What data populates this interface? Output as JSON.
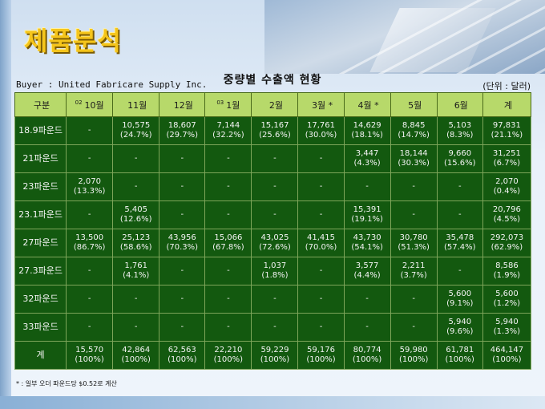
{
  "page_title": "제품분석",
  "table_title": "중량별 수출액 현황",
  "buyer": "Buyer : United Fabricare Supply Inc.",
  "unit": "(단위 : 달러)",
  "headers": [
    {
      "sup": "",
      "label": "구분"
    },
    {
      "sup": "02",
      "label": "10월"
    },
    {
      "sup": "",
      "label": "11월"
    },
    {
      "sup": "",
      "label": "12월"
    },
    {
      "sup": "03",
      "label": "1월"
    },
    {
      "sup": "",
      "label": "2월"
    },
    {
      "sup": "",
      "label": "3월 *"
    },
    {
      "sup": "",
      "label": "4월 *"
    },
    {
      "sup": "",
      "label": "5월"
    },
    {
      "sup": "",
      "label": "6월"
    },
    {
      "sup": "",
      "label": "계"
    }
  ],
  "rows": [
    {
      "label": "18.9파운드",
      "cells": [
        {
          "v": "-",
          "p": ""
        },
        {
          "v": "10,575",
          "p": "(24.7%)"
        },
        {
          "v": "18,607",
          "p": "(29.7%)"
        },
        {
          "v": "7,144",
          "p": "(32.2%)"
        },
        {
          "v": "15,167",
          "p": "(25.6%)"
        },
        {
          "v": "17,761",
          "p": "(30.0%)"
        },
        {
          "v": "14,629",
          "p": "(18.1%)"
        },
        {
          "v": "8,845",
          "p": "(14.7%)"
        },
        {
          "v": "5,103",
          "p": "(8.3%)"
        },
        {
          "v": "97,831",
          "p": "(21.1%)"
        }
      ]
    },
    {
      "label": "21파운드",
      "cells": [
        {
          "v": "-",
          "p": ""
        },
        {
          "v": "-",
          "p": ""
        },
        {
          "v": "-",
          "p": ""
        },
        {
          "v": "-",
          "p": ""
        },
        {
          "v": "-",
          "p": ""
        },
        {
          "v": "-",
          "p": ""
        },
        {
          "v": "3,447",
          "p": "(4.3%)"
        },
        {
          "v": "18,144",
          "p": "(30.3%)"
        },
        {
          "v": "9,660",
          "p": "(15.6%)"
        },
        {
          "v": "31,251",
          "p": "(6.7%)"
        }
      ]
    },
    {
      "label": "23파운드",
      "cells": [
        {
          "v": "2,070",
          "p": "(13.3%)"
        },
        {
          "v": "-",
          "p": ""
        },
        {
          "v": "-",
          "p": ""
        },
        {
          "v": "-",
          "p": ""
        },
        {
          "v": "-",
          "p": ""
        },
        {
          "v": "-",
          "p": ""
        },
        {
          "v": "-",
          "p": ""
        },
        {
          "v": "-",
          "p": ""
        },
        {
          "v": "-",
          "p": ""
        },
        {
          "v": "2,070",
          "p": "(0.4%)"
        }
      ]
    },
    {
      "label": "23.1파운드",
      "cells": [
        {
          "v": "-",
          "p": ""
        },
        {
          "v": "5,405",
          "p": "(12.6%)"
        },
        {
          "v": "-",
          "p": ""
        },
        {
          "v": "-",
          "p": ""
        },
        {
          "v": "-",
          "p": ""
        },
        {
          "v": "-",
          "p": ""
        },
        {
          "v": "15,391",
          "p": "(19.1%)"
        },
        {
          "v": "-",
          "p": ""
        },
        {
          "v": "-",
          "p": ""
        },
        {
          "v": "20,796",
          "p": "(4.5%)"
        }
      ]
    },
    {
      "label": "27파운드",
      "cells": [
        {
          "v": "13,500",
          "p": "(86.7%)"
        },
        {
          "v": "25,123",
          "p": "(58.6%)"
        },
        {
          "v": "43,956",
          "p": "(70.3%)"
        },
        {
          "v": "15,066",
          "p": "(67.8%)"
        },
        {
          "v": "43,025",
          "p": "(72.6%)"
        },
        {
          "v": "41,415",
          "p": "(70.0%)"
        },
        {
          "v": "43,730",
          "p": "(54.1%)"
        },
        {
          "v": "30,780",
          "p": "(51.3%)"
        },
        {
          "v": "35,478",
          "p": "(57.4%)"
        },
        {
          "v": "292,073",
          "p": "(62.9%)"
        }
      ]
    },
    {
      "label": "27.3파운드",
      "cells": [
        {
          "v": "-",
          "p": ""
        },
        {
          "v": "1,761",
          "p": "(4.1%)"
        },
        {
          "v": "-",
          "p": ""
        },
        {
          "v": "-",
          "p": ""
        },
        {
          "v": "1,037",
          "p": "(1.8%)"
        },
        {
          "v": "-",
          "p": ""
        },
        {
          "v": "3,577",
          "p": "(4.4%)"
        },
        {
          "v": "2,211",
          "p": "(3.7%)"
        },
        {
          "v": "-",
          "p": ""
        },
        {
          "v": "8,586",
          "p": "(1.9%)"
        }
      ]
    },
    {
      "label": "32파운드",
      "cells": [
        {
          "v": "-",
          "p": ""
        },
        {
          "v": "-",
          "p": ""
        },
        {
          "v": "-",
          "p": ""
        },
        {
          "v": "-",
          "p": ""
        },
        {
          "v": "-",
          "p": ""
        },
        {
          "v": "-",
          "p": ""
        },
        {
          "v": "-",
          "p": ""
        },
        {
          "v": "-",
          "p": ""
        },
        {
          "v": "5,600",
          "p": "(9.1%)"
        },
        {
          "v": "5,600",
          "p": "(1.2%)"
        }
      ]
    },
    {
      "label": "33파운드",
      "cells": [
        {
          "v": "-",
          "p": ""
        },
        {
          "v": "-",
          "p": ""
        },
        {
          "v": "-",
          "p": ""
        },
        {
          "v": "-",
          "p": ""
        },
        {
          "v": "-",
          "p": ""
        },
        {
          "v": "-",
          "p": ""
        },
        {
          "v": "-",
          "p": ""
        },
        {
          "v": "-",
          "p": ""
        },
        {
          "v": "5,940",
          "p": "(9.6%)"
        },
        {
          "v": "5,940",
          "p": "(1.3%)"
        }
      ]
    },
    {
      "label": "계",
      "cells": [
        {
          "v": "15,570",
          "p": "(100%)"
        },
        {
          "v": "42,864",
          "p": "(100%)"
        },
        {
          "v": "62,563",
          "p": "(100%)"
        },
        {
          "v": "22,210",
          "p": "(100%)"
        },
        {
          "v": "59,229",
          "p": "(100%)"
        },
        {
          "v": "59,176",
          "p": "(100%)"
        },
        {
          "v": "80,774",
          "p": "(100%)"
        },
        {
          "v": "59,980",
          "p": "(100%)"
        },
        {
          "v": "61,781",
          "p": "(100%)"
        },
        {
          "v": "464,147",
          "p": "(100%)"
        }
      ]
    }
  ],
  "footnote": "* : 일부 오더 파운드당 $0.52로 계산"
}
